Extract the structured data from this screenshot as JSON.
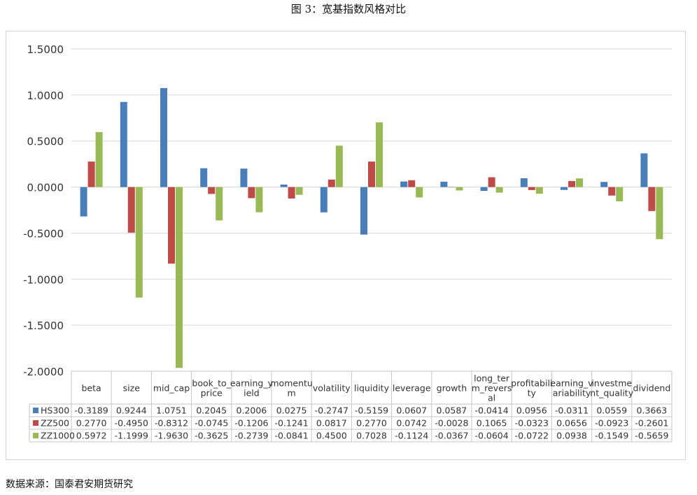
{
  "title": "图 3：宽基指数风格对比",
  "source": "数据来源：国泰君安期货研究",
  "chart_data": {
    "type": "bar",
    "categories": [
      [
        "beta"
      ],
      [
        "size"
      ],
      [
        "mid_cap"
      ],
      [
        "book_to_",
        "price"
      ],
      [
        "earning_y",
        "ield"
      ],
      [
        "momentu",
        "m"
      ],
      [
        "volatility"
      ],
      [
        "liquidity"
      ],
      [
        "leverage"
      ],
      [
        "growth"
      ],
      [
        "long_ter",
        "m_revers",
        "al"
      ],
      [
        "profitabili",
        "ty"
      ],
      [
        "earning_v",
        "ariability"
      ],
      [
        "investme",
        "nt_quality"
      ],
      [
        "dividend"
      ]
    ],
    "series": [
      {
        "name": "HS300",
        "color": "#4a7ebb",
        "values": [
          -0.3189,
          0.9244,
          1.0751,
          0.2045,
          0.2006,
          0.0275,
          -0.2747,
          -0.5159,
          0.0607,
          0.0587,
          -0.0414,
          0.0956,
          -0.0311,
          0.0559,
          0.3663
        ]
      },
      {
        "name": "ZZ500",
        "color": "#be4b48",
        "values": [
          0.277,
          -0.495,
          -0.8312,
          -0.0745,
          -0.1206,
          -0.1241,
          0.0817,
          0.277,
          0.0742,
          -0.0028,
          0.1065,
          -0.0323,
          0.0656,
          -0.0923,
          -0.2601
        ]
      },
      {
        "name": "ZZ1000",
        "color": "#98b954",
        "values": [
          0.5972,
          -1.1999,
          -1.963,
          -0.3625,
          -0.2739,
          -0.0841,
          0.45,
          0.7028,
          -0.1124,
          -0.0367,
          -0.0604,
          -0.0722,
          0.0938,
          -0.1549,
          -0.5659
        ]
      }
    ],
    "yticks": [
      "1.5000",
      "1.0000",
      "0.5000",
      "0.0000",
      "-0.5000",
      "-1.0000",
      "-1.5000",
      "-2.0000"
    ],
    "ytick_values": [
      1.5,
      1.0,
      0.5,
      0.0,
      -0.5,
      -1.0,
      -1.5,
      -2.0
    ],
    "ylim": [
      -2.0,
      1.5
    ],
    "grid": true,
    "legend": "data-table"
  }
}
